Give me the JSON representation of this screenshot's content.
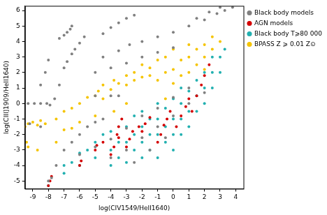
{
  "chart_data": {
    "type": "scatter",
    "x_label": "log(CIV1549/HeII1640)",
    "y_label": "log(CIII]1909/HeII1640)",
    "xlim": [
      -9.5,
      4.5
    ],
    "xticks": [
      -9,
      -8,
      -7,
      -6,
      -5,
      -4,
      -3,
      -2,
      -1,
      0,
      1,
      2,
      3,
      4
    ],
    "ylim": [
      -5.5,
      6.3
    ],
    "yticks": [
      -5,
      -4,
      -3,
      -2,
      -1,
      0,
      1,
      2,
      3,
      4,
      5,
      6
    ],
    "grid": false,
    "legend": "right",
    "marker": "circle",
    "series": [
      {
        "name": "Black body models",
        "color": "#808080",
        "x": [
          -9.3,
          -8.9,
          -8.5,
          -8.1,
          -7.9,
          -7.6,
          -7.3,
          -7,
          -6.8,
          -6.5,
          -6.3,
          -6,
          -5.7,
          -7.3,
          -7,
          -6.8,
          -6.6,
          -6.5,
          -4.5,
          -4,
          -3.5,
          -3,
          -2.5,
          -4.5,
          -3.5,
          -2.8,
          -2,
          -1,
          0,
          1,
          2,
          2.8,
          3.3,
          3.8,
          1.5,
          2.3,
          3,
          -5,
          -4,
          -3,
          -2,
          -1,
          0,
          -8.5,
          -8.2,
          -8,
          -5,
          -4,
          -3.5,
          -8,
          -7.8,
          -7.5,
          -7,
          -6.5,
          -6,
          -5.5,
          -5,
          -4.5,
          -6,
          -5,
          -4,
          -3,
          -2,
          -1,
          0,
          1,
          -4,
          -3,
          -2,
          -1,
          0,
          1,
          2,
          -2.5,
          -1.5,
          -0.5,
          -9.2,
          -8.5
        ],
        "values": [
          0,
          0,
          0,
          0,
          -0.1,
          0.3,
          1.2,
          2.3,
          2.7,
          3.2,
          3.5,
          3.9,
          4.3,
          4.2,
          4.4,
          4.6,
          4.8,
          5,
          4.5,
          4.9,
          5.2,
          5.5,
          5.7,
          3,
          3.4,
          3.8,
          4,
          4.3,
          4.6,
          5,
          5.4,
          5.8,
          6,
          6.2,
          5.5,
          5.9,
          6.2,
          2,
          2.3,
          2.6,
          3,
          3.3,
          3.6,
          1.2,
          2,
          2.8,
          0.5,
          0.5,
          0.5,
          -5,
          -4.8,
          -4,
          -3,
          -2.5,
          -2,
          -1.5,
          -1.2,
          -1,
          -3.3,
          -2.8,
          -2.3,
          -1.6,
          -0.8,
          -0.3,
          0.4,
          1,
          -3.5,
          -3,
          -2.2,
          -1.5,
          -0.8,
          0,
          0.7,
          -3.8,
          -3,
          -2.2,
          -1.3,
          -1.5
        ]
      },
      {
        "name": "AGN models",
        "color": "#d40000",
        "x": [
          -8,
          -7.9,
          -7.8,
          -6,
          -5.9,
          -5,
          -4.9,
          -4,
          -3.8,
          -3.6,
          -3.5,
          -3.3,
          -3,
          -2.8,
          -2.6,
          -2,
          -1.8,
          -1.5,
          -1,
          -0.8,
          -0.6,
          -0.4,
          -0.2,
          0.2,
          0.5,
          0.8,
          1,
          1.2,
          1.5,
          1.8,
          2,
          2.3,
          -4.5,
          -3.5,
          -2.2
        ],
        "values": [
          -5.3,
          -5,
          -4.7,
          -4,
          -3.7,
          -3,
          -2.7,
          -3.3,
          -2.8,
          -2,
          -1.5,
          -1,
          -2.8,
          -2.3,
          -1.8,
          -1.8,
          -1.3,
          -0.9,
          -2.5,
          -2,
          -1.4,
          -1,
          -0.5,
          -1.5,
          -0.8,
          -0.2,
          0.3,
          -0.5,
          0.5,
          1.2,
          1.8,
          2.5,
          -2.5,
          -2.2,
          -1.5
        ]
      },
      {
        "name": "Black body T⩾80 000 K",
        "color": "#22b0b0",
        "x": [
          -8,
          -7,
          -6,
          -6,
          -5,
          -5,
          -4.5,
          -4,
          -4,
          -4,
          -3.5,
          -3.5,
          -3,
          -3,
          -3,
          -2.5,
          -2.5,
          -2.5,
          -2,
          -2,
          -2,
          -2,
          -1.5,
          -1.5,
          -1.5,
          -1,
          -1,
          -1,
          -1,
          -0.5,
          -0.5,
          -0.5,
          0,
          0,
          0,
          0,
          0.5,
          0.5,
          0.5,
          0.5,
          1,
          1,
          1,
          1.5,
          1.5,
          1.5,
          2,
          2,
          2,
          2.5,
          2.5,
          2.5,
          3,
          3,
          3.3,
          -5.5,
          -6.5,
          -7
        ],
        "values": [
          -5.3,
          -4.5,
          -4,
          -3.2,
          -3.5,
          -2.5,
          -2,
          -4,
          -3,
          -1.8,
          -3.5,
          -2.5,
          -3.8,
          -2.5,
          -1.5,
          -3,
          -2,
          -0.8,
          -3.5,
          -2.5,
          -1.5,
          -0.5,
          -3,
          -2,
          -1,
          -3.5,
          -2,
          -1,
          0,
          -2.5,
          -1.5,
          -0.3,
          -3,
          -2,
          -1,
          0.3,
          -2,
          -1,
          0,
          1,
          -1.5,
          -0.5,
          0.8,
          -0.5,
          0.5,
          1.5,
          0,
          1,
          2,
          1,
          2,
          3,
          2,
          3,
          3.5,
          -3,
          -3.8,
          -4
        ]
      },
      {
        "name": "BPASS Z ⩾ 0.01 Z⊙",
        "color": "#f5c400",
        "x": [
          -9.5,
          -9.3,
          -9,
          -8.7,
          -8.5,
          -9.4,
          -9.3,
          -8.7,
          -8.2,
          -7.5,
          -7,
          -6.5,
          -6,
          -5.5,
          -5,
          -4.8,
          -4.5,
          -4,
          -3.8,
          -3.5,
          -3,
          -3,
          -2.5,
          -2.5,
          -2,
          -2,
          -1.5,
          -1.5,
          -1,
          -1,
          -0.5,
          -0.5,
          0,
          0,
          0,
          0.5,
          0.5,
          1,
          1,
          1,
          1.5,
          1.5,
          2,
          2,
          2,
          2.5,
          2.5,
          3,
          -6,
          -6.5,
          -7.5,
          -7,
          -4.5,
          -3.8,
          -3,
          -0.5,
          -5
        ],
        "values": [
          -1.5,
          -1.3,
          -1.2,
          -1.4,
          -1.1,
          -2.5,
          -2.8,
          -3,
          -1.3,
          -1,
          -0.5,
          -0.3,
          0,
          0.4,
          0.5,
          0.8,
          1.2,
          0.9,
          1.5,
          1.3,
          1.8,
          1.2,
          2,
          1.5,
          1.7,
          2.5,
          2.3,
          1.8,
          2.8,
          1.5,
          2,
          3,
          2.2,
          3.5,
          1.3,
          2.8,
          1.8,
          3,
          2,
          3.8,
          2.5,
          3.5,
          3,
          3.8,
          2.2,
          3.5,
          4.3,
          4,
          -1.2,
          -1.6,
          -2.5,
          -1.7,
          0.3,
          -0.5,
          0,
          0.3,
          -0.8
        ]
      }
    ]
  }
}
